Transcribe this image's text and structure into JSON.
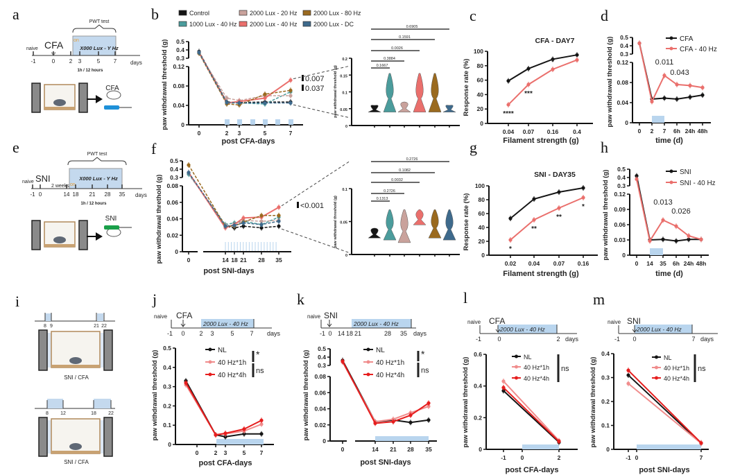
{
  "panel_letters": [
    "a",
    "b",
    "c",
    "d",
    "e",
    "f",
    "g",
    "h",
    "i",
    "j",
    "k",
    "l",
    "m"
  ],
  "schematics": {
    "a": {
      "bracket": "PWT test",
      "box": "X000 Lux - Y Hz",
      "naive": "naive",
      "event": "CFA",
      "on": "on",
      "ticks": [
        "-1",
        "0",
        "2",
        "3",
        "5",
        "7"
      ],
      "days": "days",
      "schedule": "1h / 12 hours",
      "model": "CFA"
    },
    "e": {
      "bracket": "PWT test",
      "box": "X000 Lux - Y Hz",
      "naive": "naive",
      "event": "SNI",
      "on": "on",
      "gap": "2 weeks",
      "ticks": [
        "-1",
        "0",
        "14",
        "18",
        "21",
        "28",
        "35"
      ],
      "days": "days",
      "schedule": "1h / 12 hours",
      "model": "SNI"
    },
    "i": {
      "top_ticks": [
        "8",
        "9",
        "21",
        "22"
      ],
      "bottom_ticks": [
        "8",
        "12",
        "18",
        "22"
      ],
      "caption_top": "SNI / CFA",
      "caption_bottom": "SNI / CFA"
    },
    "j": {
      "naive": "naive",
      "event": "CFA",
      "box": "2000 Lux - 40 Hz",
      "ticks": [
        "-1",
        "0",
        "2",
        "3",
        "5",
        "7"
      ],
      "days": "days"
    },
    "k": {
      "naive": "naive",
      "event": "SNI",
      "box": "2000 Lux - 40 Hz",
      "ticks": [
        "-1",
        "0",
        "14",
        "18",
        "21",
        "28",
        "35"
      ],
      "days": "days"
    },
    "l": {
      "naive": "naive",
      "event": "CFA",
      "box": "2000 Lux - 40 Hz",
      "ticks": [
        "-1",
        "0",
        "2"
      ],
      "days": "days"
    },
    "m": {
      "naive": "naive",
      "event": "SNI",
      "box": "2000 Lux - 40 Hz",
      "ticks": [
        "-1",
        "0",
        "7"
      ],
      "days": "days"
    }
  },
  "colors": {
    "control": "#151515",
    "teal": "#4b9c9c",
    "rose": "#c9a29c",
    "red": "#ea6f6c",
    "brown": "#9a6a1f",
    "slate": "#3e6a8c",
    "light_blue": "#b9d5ee",
    "nl": "#151515",
    "h1": "#f08c8c",
    "h4": "#e61e1e"
  },
  "chart_data": [
    {
      "panel": "b",
      "type": "line",
      "xlabel": "post CFA-days",
      "ylabel": "paw withdrawal threshold (g)",
      "x": [
        0,
        2,
        3,
        5,
        7
      ],
      "yticks": [
        0,
        0.04,
        0.08,
        0.12
      ],
      "yticks_upper": [
        0.3,
        0.4,
        0.5
      ],
      "broken_y": true,
      "legend_position": "top",
      "series": [
        {
          "name": "Control",
          "values": [
            0.38,
            0.047,
            0.046,
            0.047,
            0.047
          ]
        },
        {
          "name": "1000 Lux - 40 Hz",
          "values": [
            0.37,
            0.045,
            0.045,
            0.043,
            0.068
          ]
        },
        {
          "name": "2000 Lux - 20 Hz",
          "values": [
            0.36,
            0.055,
            0.05,
            0.06,
            0.06
          ]
        },
        {
          "name": "2000 Lux - 40 Hz",
          "values": [
            0.37,
            0.045,
            0.048,
            0.055,
            0.092
          ]
        },
        {
          "name": "2000 Lux - 80 Hz",
          "values": [
            0.36,
            0.043,
            0.041,
            0.063,
            0.071
          ]
        },
        {
          "name": "2000 Lux - DC",
          "values": [
            0.37,
            0.046,
            0.045,
            0.045,
            0.045
          ]
        }
      ],
      "annotations": [
        "0.007",
        "0.037"
      ]
    },
    {
      "panel": "b-inset",
      "type": "violin",
      "ylabel": "paw withdrawal threshold (g)",
      "yticks": [
        0,
        0.05,
        0.1,
        0.15,
        0.2
      ],
      "ylim": [
        0,
        0.2
      ],
      "groups": [
        "Control",
        "1000 Lux - 40 Hz",
        "2000 Lux - 20 Hz",
        "2000 Lux - 40 Hz",
        "2000 Lux - 80 Hz",
        "2000 Lux - DC"
      ],
      "ranges": [
        [
          0.04,
          0.06
        ],
        [
          0.04,
          0.155
        ],
        [
          0.04,
          0.07
        ],
        [
          0.04,
          0.155
        ],
        [
          0.04,
          0.155
        ],
        [
          0.04,
          0.06
        ]
      ],
      "p_values": [
        "0.1667",
        "0.3884",
        "0.0026",
        "0.1591",
        "0.6905"
      ]
    },
    {
      "panel": "c",
      "type": "line",
      "title": "CFA - DAY7",
      "xlabel": "Filament strength (g)",
      "ylabel": "Response rate (%)",
      "x": [
        "0.04",
        "0.07",
        "0.16",
        "0.4"
      ],
      "yticks": [
        0,
        20,
        40,
        60,
        80,
        100
      ],
      "ylim": [
        0,
        100
      ],
      "series": [
        {
          "values": [
            59,
            76,
            89,
            95
          ]
        },
        {
          "values": [
            26,
            54,
            75,
            88
          ]
        }
      ],
      "stars": [
        "****",
        "***",
        "*",
        ""
      ]
    },
    {
      "panel": "d",
      "type": "line",
      "xlabel": "time (d)",
      "ylabel": "paw withdrawal threshold (g)",
      "x": [
        "0",
        "2",
        "7",
        "6h",
        "24h",
        "48h"
      ],
      "yticks": [
        0,
        0.04,
        0.08,
        0.12
      ],
      "yticks_upper": [
        0.3,
        0.4,
        0.5
      ],
      "broken_y": true,
      "legend_position": "top-right",
      "series": [
        {
          "name": "CFA",
          "values": [
            0.43,
            0.047,
            0.049,
            0.047,
            0.051,
            0.055
          ]
        },
        {
          "name": "CFA - 40 Hz",
          "values": [
            0.43,
            0.042,
            0.094,
            0.076,
            0.074,
            0.07
          ]
        }
      ],
      "annotations": [
        "0.011",
        "0.043"
      ]
    },
    {
      "panel": "f",
      "type": "line",
      "xlabel": "post SNI-days",
      "ylabel": "paw withdrawal threthold (g)",
      "x": [
        0,
        14,
        18,
        21,
        28,
        35
      ],
      "yticks": [
        0,
        0.02,
        0.04,
        0.06,
        0.08
      ],
      "yticks_upper": [
        0.3,
        0.4,
        0.5
      ],
      "broken_y": true,
      "series": [
        {
          "name": "Control",
          "values": [
            0.35,
            0.031,
            0.029,
            0.031,
            0.029,
            0.031
          ]
        },
        {
          "name": "1000 Lux - 40 Hz",
          "values": [
            0.34,
            0.033,
            0.035,
            0.037,
            0.033,
            0.042
          ]
        },
        {
          "name": "2000 Lux - 20 Hz",
          "values": [
            0.36,
            0.032,
            0.031,
            0.038,
            0.037,
            0.038
          ]
        },
        {
          "name": "2000 Lux - 40 Hz",
          "values": [
            0.36,
            0.029,
            0.033,
            0.041,
            0.042,
            0.054
          ]
        },
        {
          "name": "2000 Lux - 80 Hz",
          "values": [
            0.45,
            0.031,
            0.031,
            0.036,
            0.044,
            0.044
          ]
        },
        {
          "name": "2000 Lux - DC",
          "values": [
            0.36,
            0.031,
            0.032,
            0.035,
            0.033,
            0.037
          ]
        }
      ],
      "annotations": [
        "<0.001"
      ]
    },
    {
      "panel": "f-inset",
      "type": "violin",
      "ylabel": "paw withdrawal threshold (g)",
      "yticks": [
        0,
        0.05,
        0.1
      ],
      "ylim": [
        0,
        0.1
      ],
      "groups": [
        "Control",
        "1000 Lux - 40 Hz",
        "2000 Lux - 20 Hz",
        "2000 Lux - 40 Hz",
        "2000 Lux - 80 Hz",
        "2000 Lux - DC"
      ],
      "ranges": [
        [
          0.025,
          0.04
        ],
        [
          0.022,
          0.068
        ],
        [
          0.018,
          0.068
        ],
        [
          0.045,
          0.068
        ],
        [
          0.025,
          0.068
        ],
        [
          0.022,
          0.068
        ]
      ],
      "p_values": [
        "0.1313",
        "0.2726",
        "0.0032",
        "0.1082",
        "0.2726"
      ]
    },
    {
      "panel": "g",
      "type": "line",
      "title": "SNI - DAY35",
      "xlabel": "Filament strength (g)",
      "ylabel": "Response rate (%)",
      "x": [
        "0.02",
        "0.04",
        "0.07",
        "0.16"
      ],
      "yticks": [
        0,
        20,
        40,
        60,
        80,
        100
      ],
      "ylim": [
        0,
        100
      ],
      "series": [
        {
          "values": [
            53,
            81,
            91,
            97
          ]
        },
        {
          "values": [
            22,
            51,
            68,
            83
          ]
        }
      ],
      "stars": [
        "*",
        "**",
        "**",
        "*"
      ]
    },
    {
      "panel": "h",
      "type": "line",
      "xlabel": "time (d)",
      "ylabel": "paw withdrawal threshold (g)",
      "x": [
        "0",
        "14",
        "35",
        "6h",
        "24h",
        "48h"
      ],
      "yticks": [
        0,
        0.03,
        0.06,
        0.09,
        0.12
      ],
      "yticks_upper": [
        0.3,
        0.4,
        0.5
      ],
      "broken_y": true,
      "legend_position": "top-right",
      "series": [
        {
          "name": "SNI",
          "values": [
            0.42,
            0.03,
            0.031,
            0.028,
            0.031,
            0.031
          ]
        },
        {
          "name": "SNI - 40 Hz",
          "values": [
            0.38,
            0.028,
            0.069,
            0.057,
            0.038,
            0.031
          ]
        }
      ],
      "annotations": [
        "0.013",
        "0.026"
      ]
    },
    {
      "panel": "j",
      "type": "line",
      "xlabel": "post CFA-days",
      "ylabel": "paw withdrawal threshold (g)",
      "x": [
        -1,
        2,
        3,
        5,
        7
      ],
      "xticks": [
        0,
        2,
        3,
        5,
        7
      ],
      "yticks": [
        0,
        0.1,
        0.2,
        0.3,
        0.4,
        0.5
      ],
      "ylim": [
        0,
        0.5
      ],
      "legend_position": "top-right",
      "series": [
        {
          "name": "NL",
          "values": [
            0.33,
            0.05,
            0.04,
            0.055,
            0.055
          ]
        },
        {
          "name": "40 Hz*1h",
          "values": [
            0.31,
            0.05,
            0.055,
            0.07,
            0.105
          ]
        },
        {
          "name": "40 Hz*4h",
          "values": [
            0.32,
            0.05,
            0.058,
            0.08,
            0.125
          ]
        }
      ],
      "significance": [
        "*",
        "ns"
      ]
    },
    {
      "panel": "k",
      "type": "line",
      "xlabel": "post SNI-days",
      "ylabel": "paw withdrawal threshold (g)",
      "x": [
        0,
        14,
        21,
        28,
        35
      ],
      "yticks": [
        0,
        0.02,
        0.04,
        0.06,
        0.08
      ],
      "yticks_upper": [
        0.3,
        0.4,
        0.5
      ],
      "broken_y": true,
      "legend_position": "top-right",
      "series": [
        {
          "name": "NL",
          "values": [
            0.36,
            0.024,
            0.026,
            0.023,
            0.026
          ]
        },
        {
          "name": "40 Hz*1h",
          "values": [
            0.34,
            0.024,
            0.027,
            0.035,
            0.043
          ]
        },
        {
          "name": "40 Hz*4h",
          "values": [
            0.35,
            0.022,
            0.024,
            0.032,
            0.047
          ]
        }
      ],
      "significance": [
        "*",
        "ns"
      ]
    },
    {
      "panel": "l",
      "type": "line",
      "xlabel": "post CFA-days",
      "ylabel": "paw withdrawal threshold (g)",
      "x": [
        -1,
        2
      ],
      "xticks": [
        -1,
        0,
        2
      ],
      "yticks": [
        0,
        0.2,
        0.4,
        0.6
      ],
      "ylim": [
        0,
        0.6
      ],
      "legend_position": "top-right",
      "series": [
        {
          "name": "NL",
          "values": [
            0.37,
            0.045
          ]
        },
        {
          "name": "40 Hz*1h",
          "values": [
            0.43,
            0.055
          ]
        },
        {
          "name": "40 Hz*4h",
          "values": [
            0.39,
            0.05
          ]
        }
      ],
      "significance": [
        "ns"
      ]
    },
    {
      "panel": "m",
      "type": "line",
      "xlabel": "post SNI-days",
      "ylabel": "paw withdrawal threshold (g)",
      "x": [
        -1,
        7
      ],
      "xticks": [
        -1,
        0,
        7
      ],
      "yticks": [
        0,
        0.1,
        0.2,
        0.3,
        0.4
      ],
      "ylim": [
        0,
        0.4
      ],
      "legend_position": "top-right",
      "series": [
        {
          "name": "NL",
          "values": [
            0.31,
            0.025
          ]
        },
        {
          "name": "40 Hz*1h",
          "values": [
            0.275,
            0.025
          ]
        },
        {
          "name": "40 Hz*4h",
          "values": [
            0.33,
            0.027
          ]
        }
      ],
      "significance": [
        "ns"
      ]
    }
  ]
}
